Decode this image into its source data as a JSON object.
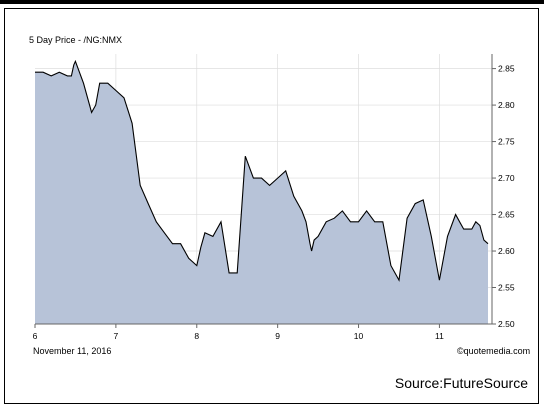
{
  "chart_data": {
    "type": "area",
    "title": "5 Day Price - /NG:NMX",
    "date_caption": "November 11, 2016",
    "source_logo": "©quotemedia.com",
    "source_note": "Source:FutureSource",
    "x_ticks": [
      "6",
      "7",
      "8",
      "9",
      "10",
      "11"
    ],
    "y_ticks": [
      "2.85",
      "2.80",
      "2.75",
      "2.70",
      "2.65",
      "2.60",
      "2.55",
      "2.50"
    ],
    "ylim": [
      2.5,
      2.87
    ],
    "xlim": [
      6.0,
      11.65
    ],
    "grid": true,
    "colors": {
      "fill": "#b7c3d8",
      "line": "#000000",
      "grid": "#dddddd"
    },
    "series": [
      {
        "x": [
          6.0,
          6.1,
          6.2,
          6.3,
          6.4,
          6.45,
          6.48,
          6.5,
          6.6,
          6.7,
          6.75,
          6.8,
          6.9,
          7.0,
          7.1,
          7.2,
          7.3,
          7.4,
          7.5,
          7.6,
          7.7,
          7.8,
          7.9,
          8.0,
          8.05,
          8.1,
          8.2,
          8.3,
          8.4,
          8.5,
          8.6,
          8.7,
          8.8,
          8.9,
          9.0,
          9.1,
          9.2,
          9.3,
          9.35,
          9.4,
          9.42,
          9.45,
          9.5,
          9.6,
          9.7,
          9.8,
          9.9,
          10.0,
          10.1,
          10.2,
          10.3,
          10.4,
          10.5,
          10.6,
          10.7,
          10.8,
          10.9,
          11.0,
          11.1,
          11.2,
          11.25,
          11.3,
          11.4,
          11.45,
          11.5,
          11.55,
          11.6
        ],
        "values": [
          2.845,
          2.845,
          2.84,
          2.845,
          2.84,
          2.84,
          2.855,
          2.86,
          2.83,
          2.79,
          2.8,
          2.83,
          2.83,
          2.82,
          2.81,
          2.775,
          2.69,
          2.665,
          2.64,
          2.625,
          2.61,
          2.61,
          2.59,
          2.58,
          2.605,
          2.625,
          2.62,
          2.64,
          2.57,
          2.57,
          2.73,
          2.7,
          2.7,
          2.69,
          2.7,
          2.71,
          2.675,
          2.655,
          2.64,
          2.61,
          2.6,
          2.615,
          2.62,
          2.64,
          2.645,
          2.655,
          2.64,
          2.64,
          2.655,
          2.64,
          2.64,
          2.58,
          2.56,
          2.645,
          2.665,
          2.67,
          2.62,
          2.56,
          2.62,
          2.65,
          2.64,
          2.63,
          2.63,
          2.64,
          2.635,
          2.615,
          2.61
        ]
      }
    ]
  }
}
